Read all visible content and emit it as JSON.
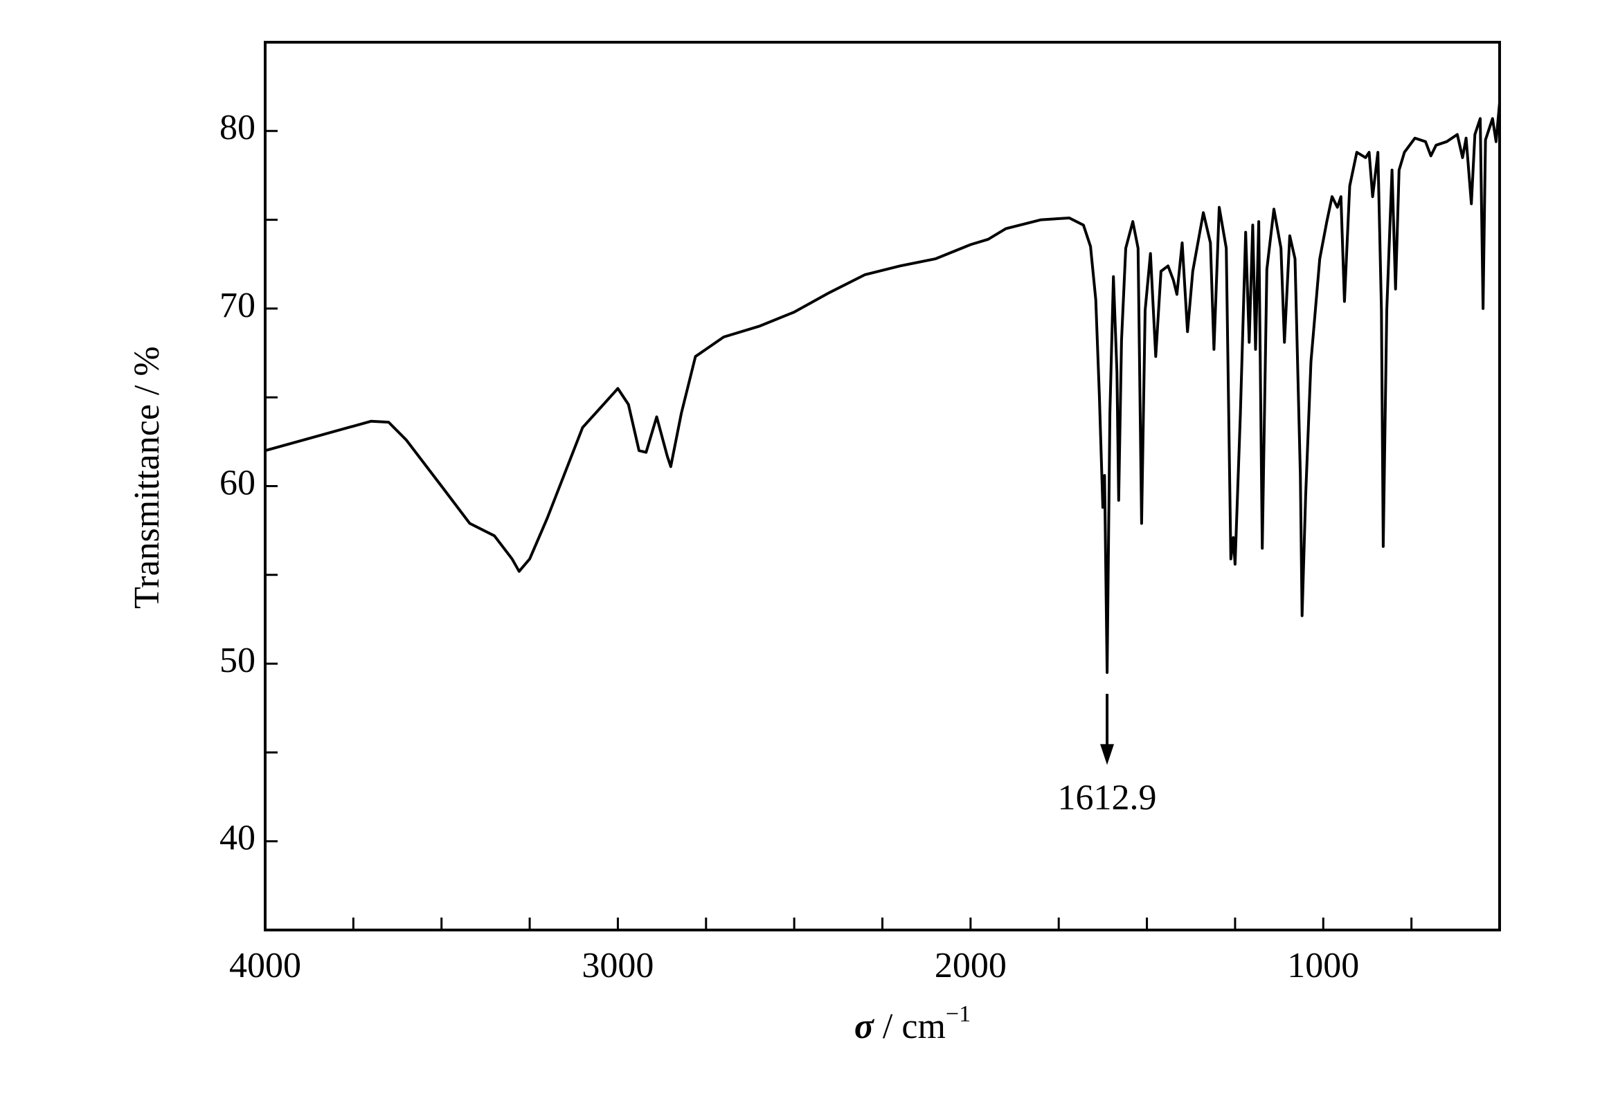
{
  "chart_data": {
    "type": "line",
    "ylabel": "Transmittance / %",
    "xlabel": {
      "symbol": "σ",
      "unit": " / cm",
      "exponent": "−1"
    },
    "x": [
      4000,
      3700,
      3650,
      3600,
      3500,
      3420,
      3350,
      3300,
      3280,
      3250,
      3200,
      3100,
      3050,
      3000,
      2970,
      2940,
      2920,
      2890,
      2860,
      2850,
      2820,
      2780,
      2700,
      2600,
      2500,
      2400,
      2300,
      2200,
      2100,
      2000,
      1950,
      1900,
      1800,
      1720,
      1680,
      1660,
      1645,
      1635,
      1625,
      1620,
      1612.9,
      1605,
      1595,
      1585,
      1580,
      1572,
      1560,
      1540,
      1525,
      1515,
      1505,
      1490,
      1475,
      1460,
      1440,
      1425,
      1415,
      1400,
      1385,
      1370,
      1340,
      1320,
      1310,
      1295,
      1275,
      1262,
      1255,
      1250,
      1235,
      1220,
      1210,
      1200,
      1192,
      1183,
      1173,
      1160,
      1140,
      1120,
      1110,
      1095,
      1080,
      1065,
      1060,
      1050,
      1035,
      1010,
      990,
      975,
      960,
      950,
      940,
      925,
      905,
      880,
      870,
      860,
      845,
      835,
      830,
      820,
      805,
      795,
      785,
      770,
      740,
      710,
      695,
      680,
      650,
      620,
      605,
      595,
      580,
      570,
      555,
      547,
      540,
      520,
      510,
      500
    ],
    "series": [
      {
        "color": "#000000",
        "values": [
          62.0,
          63.65,
          63.6,
          62.6,
          60.0,
          57.9,
          57.2,
          55.9,
          55.2,
          55.9,
          58.2,
          63.3,
          64.4,
          65.5,
          64.6,
          62.0,
          61.9,
          63.9,
          61.7,
          61.1,
          64.1,
          67.3,
          68.4,
          69.0,
          69.8,
          70.9,
          71.9,
          72.4,
          72.8,
          73.6,
          73.9,
          74.5,
          75.0,
          75.1,
          74.7,
          73.5,
          70.5,
          65.2,
          58.8,
          60.6,
          49.5,
          64.1,
          71.8,
          66.4,
          59.2,
          68.2,
          73.4,
          74.9,
          73.4,
          57.9,
          69.9,
          73.1,
          67.3,
          72.1,
          72.4,
          71.6,
          70.8,
          73.7,
          68.7,
          72.1,
          75.4,
          73.7,
          67.7,
          75.7,
          73.4,
          55.9,
          57.1,
          55.6,
          64.1,
          74.3,
          68.1,
          74.7,
          67.7,
          74.9,
          56.5,
          72.2,
          75.6,
          73.4,
          68.1,
          74.1,
          72.8,
          60.6,
          52.7,
          59.4,
          67.0,
          72.8,
          74.9,
          76.3,
          75.7,
          76.3,
          70.4,
          76.9,
          78.8,
          78.5,
          78.8,
          76.3,
          78.8,
          69.9,
          56.6,
          69.9,
          77.8,
          71.1,
          77.8,
          78.8,
          79.6,
          79.4,
          78.6,
          79.2,
          79.4,
          79.8,
          78.5,
          79.6,
          75.9,
          79.8,
          80.7,
          70.0,
          79.5,
          80.7,
          79.4,
          81.6
        ]
      }
    ],
    "xlim": [
      4000,
      500
    ],
    "ylim": [
      35,
      85
    ],
    "xticks": [
      4000,
      3000,
      2000,
      1000
    ],
    "xminorticks": [
      3750,
      3500,
      3250,
      2750,
      2500,
      2250,
      1750,
      1500,
      1250,
      750
    ],
    "yticks": [
      40,
      50,
      60,
      70,
      80
    ],
    "yminorticks": [
      45,
      55,
      65,
      75
    ],
    "annotation": {
      "label": "1612.9",
      "x": 1612.9,
      "arrow_from": 48.3,
      "arrow_to": 44.3
    }
  }
}
